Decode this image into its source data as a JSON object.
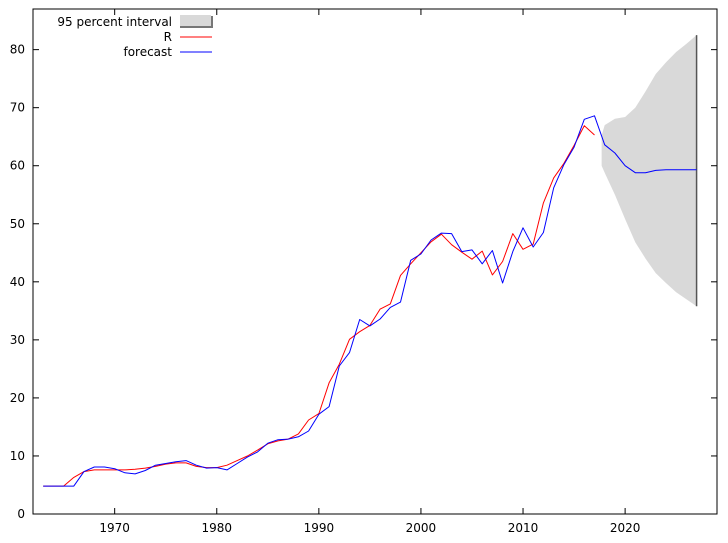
{
  "chart_data": {
    "type": "line",
    "title": "",
    "xlabel": "",
    "ylabel": "",
    "xlim": [
      1962,
      2029
    ],
    "ylim": [
      0,
      87
    ],
    "x_ticks": [
      1970,
      1980,
      1990,
      2000,
      2010,
      2020
    ],
    "y_ticks": [
      0,
      10,
      20,
      30,
      40,
      50,
      60,
      70,
      80
    ],
    "grid": false,
    "legend_position": "top-left",
    "legend": [
      {
        "label": "95 percent interval",
        "kind": "band",
        "color": "#d9d9d9"
      },
      {
        "label": "R",
        "kind": "line",
        "color": "#ff0000"
      },
      {
        "label": "forecast",
        "kind": "line",
        "color": "#0000ff"
      }
    ],
    "series": [
      {
        "name": "R",
        "color": "#ff0000",
        "x": [
          1963,
          1964,
          1965,
          1966,
          1967,
          1968,
          1969,
          1970,
          1971,
          1972,
          1973,
          1974,
          1975,
          1976,
          1977,
          1978,
          1979,
          1980,
          1981,
          1982,
          1983,
          1984,
          1985,
          1986,
          1987,
          1988,
          1989,
          1990,
          1991,
          1992,
          1993,
          1994,
          1995,
          1996,
          1997,
          1998,
          1999,
          2000,
          2001,
          2002,
          2003,
          2004,
          2005,
          2006,
          2007,
          2008,
          2009,
          2010,
          2011,
          2012,
          2013,
          2014,
          2015,
          2016,
          2017
        ],
        "values": [
          4.8,
          4.8,
          4.8,
          6.3,
          7.3,
          7.6,
          7.6,
          7.6,
          7.6,
          7.7,
          7.9,
          8.2,
          8.6,
          8.8,
          8.8,
          8.2,
          8.0,
          8.0,
          8.4,
          9.2,
          10.0,
          11.0,
          12.1,
          12.6,
          12.9,
          13.8,
          16.2,
          17.3,
          22.6,
          25.8,
          30.1,
          31.4,
          32.5,
          35.3,
          36.2,
          41.1,
          43.1,
          45.0,
          46.9,
          48.2,
          46.4,
          45.1,
          43.9,
          45.3,
          41.2,
          43.5,
          48.3,
          45.6,
          46.5,
          53.6,
          57.9,
          60.4,
          63.5,
          66.9,
          65.3
        ]
      },
      {
        "name": "forecast",
        "color": "#0000ff",
        "x": [
          1963,
          1964,
          1965,
          1966,
          1967,
          1968,
          1969,
          1970,
          1971,
          1972,
          1973,
          1974,
          1975,
          1976,
          1977,
          1978,
          1979,
          1980,
          1981,
          1982,
          1983,
          1984,
          1985,
          1986,
          1987,
          1988,
          1989,
          1990,
          1991,
          1992,
          1993,
          1994,
          1995,
          1996,
          1997,
          1998,
          1999,
          2000,
          2001,
          2002,
          2003,
          2004,
          2005,
          2006,
          2007,
          2008,
          2009,
          2010,
          2011,
          2012,
          2013,
          2014,
          2015,
          2016,
          2017,
          2018,
          2019,
          2020,
          2021,
          2022,
          2023,
          2024,
          2025,
          2026,
          2027
        ],
        "values": [
          4.8,
          4.8,
          4.8,
          4.8,
          7.3,
          8.1,
          8.1,
          7.8,
          7.1,
          6.9,
          7.5,
          8.4,
          8.7,
          9.0,
          9.2,
          8.4,
          7.9,
          8.0,
          7.6,
          8.7,
          9.8,
          10.7,
          12.2,
          12.8,
          12.9,
          13.3,
          14.3,
          17.2,
          18.5,
          25.5,
          27.8,
          33.5,
          32.4,
          33.6,
          35.6,
          36.5,
          43.7,
          44.8,
          47.2,
          48.4,
          48.3,
          45.2,
          45.5,
          43.1,
          45.4,
          39.8,
          45.2,
          49.3,
          46.0,
          48.5,
          56.2,
          60.2,
          63.2,
          68.0,
          68.6,
          63.6,
          62.2,
          60.0,
          58.8,
          58.8,
          59.2,
          59.3,
          59.3,
          59.3,
          59.3
        ]
      }
    ],
    "band": {
      "name": "95 percent interval",
      "color": "#d9d9d9",
      "x": [
        2017.7,
        2018,
        2019,
        2020,
        2021,
        2022,
        2023,
        2024,
        2025,
        2026,
        2027
      ],
      "upper": [
        65.2,
        67.0,
        68.1,
        68.4,
        70.0,
        72.8,
        75.8,
        77.8,
        79.6,
        81.0,
        82.5
      ],
      "lower": [
        60.0,
        58.8,
        55.0,
        50.8,
        46.8,
        44.0,
        41.5,
        39.8,
        38.2,
        37.0,
        35.8
      ]
    }
  }
}
